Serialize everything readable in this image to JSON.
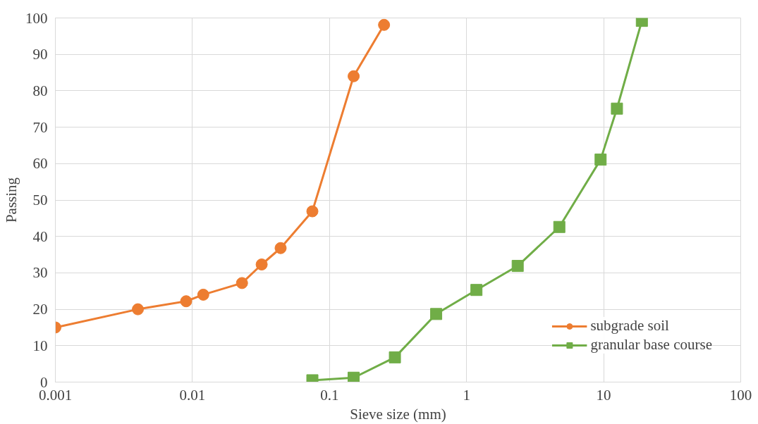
{
  "chart_data": {
    "type": "line",
    "xlabel": "Sieve size (mm)",
    "ylabel": "Passing",
    "log": "x",
    "xlim": [
      0.001,
      100
    ],
    "xticks": [
      0.001,
      0.01,
      0.1,
      1,
      10,
      100
    ],
    "ylim": [
      0,
      100
    ],
    "yticks": [
      0,
      10,
      20,
      30,
      40,
      50,
      60,
      70,
      80,
      90,
      100
    ],
    "grid": true,
    "legend": "bottom right",
    "series": [
      {
        "name": "subgrade soil",
        "color": "#ed7d31",
        "marker": "circle",
        "x": [
          0.001,
          0.004,
          0.009,
          0.012,
          0.023,
          0.032,
          0.044,
          0.075,
          0.15,
          0.25
        ],
        "values": [
          15,
          20,
          22.2,
          24,
          27.2,
          32.3,
          36.8,
          46.9,
          84,
          98.1
        ]
      },
      {
        "name": "granular base course",
        "color": "#70ad47",
        "marker": "square",
        "x": [
          0.075,
          0.15,
          0.3,
          0.6,
          1.18,
          2.36,
          4.75,
          9.5,
          12.5,
          19
        ],
        "values": [
          0.5,
          1.2,
          6.8,
          18.7,
          25.3,
          31.9,
          42.6,
          61.1,
          75.1,
          99.2
        ]
      }
    ]
  }
}
